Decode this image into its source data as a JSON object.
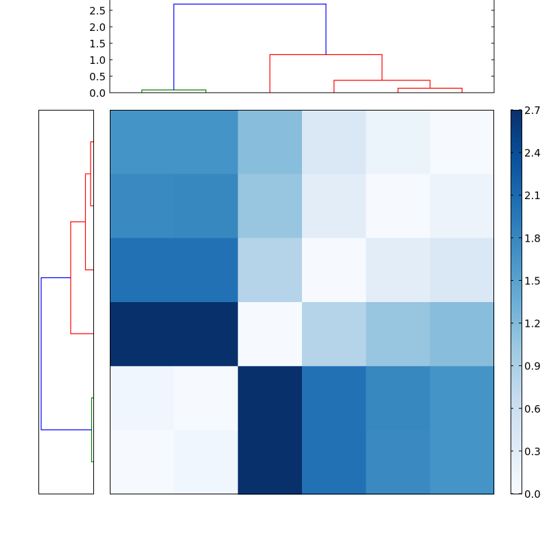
{
  "chart_data": [
    {
      "type": "heatmap",
      "title": "",
      "xlabel": "",
      "ylabel": "",
      "colormap": "Blues",
      "vmin": 0.0,
      "vmax": 2.7,
      "rows": 6,
      "cols": 6,
      "values": [
        [
          1.5,
          1.5,
          1.1,
          0.35,
          0.15,
          0.05
        ],
        [
          1.7,
          1.7,
          0.95,
          0.25,
          0.05,
          0.15
        ],
        [
          2.05,
          2.05,
          0.65,
          0.05,
          0.25,
          0.35
        ],
        [
          2.7,
          2.7,
          0.05,
          0.65,
          0.95,
          1.1
        ],
        [
          0.08,
          0.03,
          2.7,
          2.05,
          1.7,
          1.5
        ],
        [
          0.03,
          0.08,
          2.7,
          2.05,
          1.7,
          1.5
        ]
      ],
      "colors": [
        [
          "#4594c7",
          "#4594c7",
          "#88bddc",
          "#dae8f5",
          "#ebf3fb",
          "#f6faff"
        ],
        [
          "#3a89c1",
          "#3888c0",
          "#98c5df",
          "#e2edf8",
          "#f6faff",
          "#ecf3fb"
        ],
        [
          "#2271b5",
          "#2271b5",
          "#b5d4e9",
          "#f6faff",
          "#e2edf8",
          "#dae8f5"
        ],
        [
          "#08306b",
          "#08306b",
          "#f6faff",
          "#b5d4e9",
          "#98c5df",
          "#88bddc"
        ],
        [
          "#f0f6fe",
          "#f6faff",
          "#08306b",
          "#2271b5",
          "#3888c0",
          "#4594c7"
        ],
        [
          "#f6faff",
          "#f0f6fe",
          "#08306b",
          "#2271b5",
          "#3a89c1",
          "#4594c7"
        ]
      ],
      "xticks": [],
      "yticks": []
    },
    {
      "type": "line",
      "subtype": "dendrogram",
      "orientation": "top",
      "ylim": [
        0.0,
        2.75
      ],
      "yticks": [
        "0.0",
        "0.5",
        "1.0",
        "1.5",
        "2.0",
        "2.5"
      ],
      "leaves": 6,
      "links": [
        {
          "left": 0,
          "right": 1,
          "height": 0.08,
          "color": "#008000"
        },
        {
          "left": 4,
          "right": 5,
          "height": 0.15,
          "color": "#ff0000"
        },
        {
          "left": 3,
          "right": "4-5",
          "height": 0.4,
          "color": "#ff0000"
        },
        {
          "left": 2,
          "right": "3-4-5",
          "height": 1.16,
          "color": "#ff0000"
        },
        {
          "left": "0-1",
          "right": "2-3-4-5",
          "height": 2.7,
          "color": "#0000ff"
        }
      ]
    },
    {
      "type": "line",
      "subtype": "dendrogram",
      "orientation": "left",
      "leaves": 6,
      "links": [
        {
          "left": 0,
          "right": 1,
          "height": 0.08,
          "color": "#008000"
        },
        {
          "left": 4,
          "right": 5,
          "height": 0.15,
          "color": "#ff0000"
        },
        {
          "left": 3,
          "right": "4-5",
          "height": 0.4,
          "color": "#ff0000"
        },
        {
          "left": 2,
          "right": "3-4-5",
          "height": 1.16,
          "color": "#ff0000"
        },
        {
          "left": "0-1",
          "right": "2-3-4-5",
          "height": 2.7,
          "color": "#0000ff"
        }
      ]
    },
    {
      "type": "colorbar",
      "range": [
        0.0,
        2.7
      ],
      "ticks": [
        "0.0",
        "0.3",
        "0.6",
        "0.9",
        "1.2",
        "1.5",
        "1.8",
        "2.1",
        "2.4",
        "2.7"
      ]
    }
  ],
  "top_dendrogram": {
    "yticks": [
      "0.0",
      "0.5",
      "1.0",
      "1.5",
      "2.0",
      "2.5"
    ]
  },
  "colorbar": {
    "ticks": [
      "0.0",
      "0.3",
      "0.6",
      "0.9",
      "1.2",
      "1.5",
      "1.8",
      "2.1",
      "2.4",
      "2.7"
    ]
  }
}
